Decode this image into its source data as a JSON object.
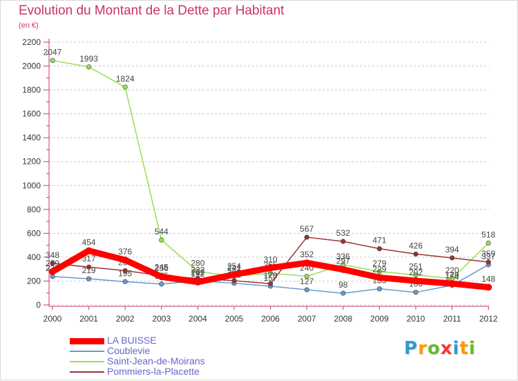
{
  "chart_data": {
    "type": "line",
    "title": "Evolution du Montant de la Dette par Habitant",
    "subtitle": "(en €)",
    "xlabel": "",
    "ylabel": "",
    "ylim": [
      0,
      2200
    ],
    "yticks": [
      0,
      200,
      400,
      600,
      800,
      1000,
      1200,
      1400,
      1600,
      1800,
      2000,
      2200
    ],
    "grid": true,
    "categories": [
      "2000",
      "2001",
      "2002",
      "2003",
      "2004",
      "2005",
      "2006",
      "2007",
      "2008",
      "2009",
      "2010",
      "2011",
      "2012"
    ],
    "legend_position": "bottom-left",
    "series": [
      {
        "name": "LA BUISSE",
        "color": "#ff0000",
        "thick": true,
        "values": [
          279,
          454,
          376,
          236,
          192,
          254,
          310,
          352,
          297,
          229,
          202,
          179,
          148
        ]
      },
      {
        "name": "Coublevie",
        "color": "#6699cc",
        "thick": false,
        "values": [
          238,
          219,
          195,
          175,
          202,
          182,
          157,
          127,
          98,
          135,
          106,
          164,
          337
        ]
      },
      {
        "name": "Saint-Jean-de-Moirans",
        "color": "#99dd55",
        "thick": false,
        "values": [
          2047,
          1993,
          1824,
          544,
          280,
          241,
          265,
          240,
          336,
          279,
          251,
          220,
          518
        ]
      },
      {
        "name": "Pommiers-la-Placette",
        "color": "#993333",
        "thick": false,
        "values": [
          348,
          317,
          287,
          245,
          222,
          203,
          178,
          567,
          532,
          471,
          426,
          394,
          359
        ]
      }
    ]
  },
  "logo": {
    "letters": [
      "P",
      "r",
      "o",
      "x",
      "i",
      "t",
      "i"
    ],
    "colors": [
      "#3399cc",
      "#ff9900",
      "#66bb33",
      "#ff3333",
      "#3399cc",
      "#ff9900",
      "#66bb33"
    ]
  }
}
